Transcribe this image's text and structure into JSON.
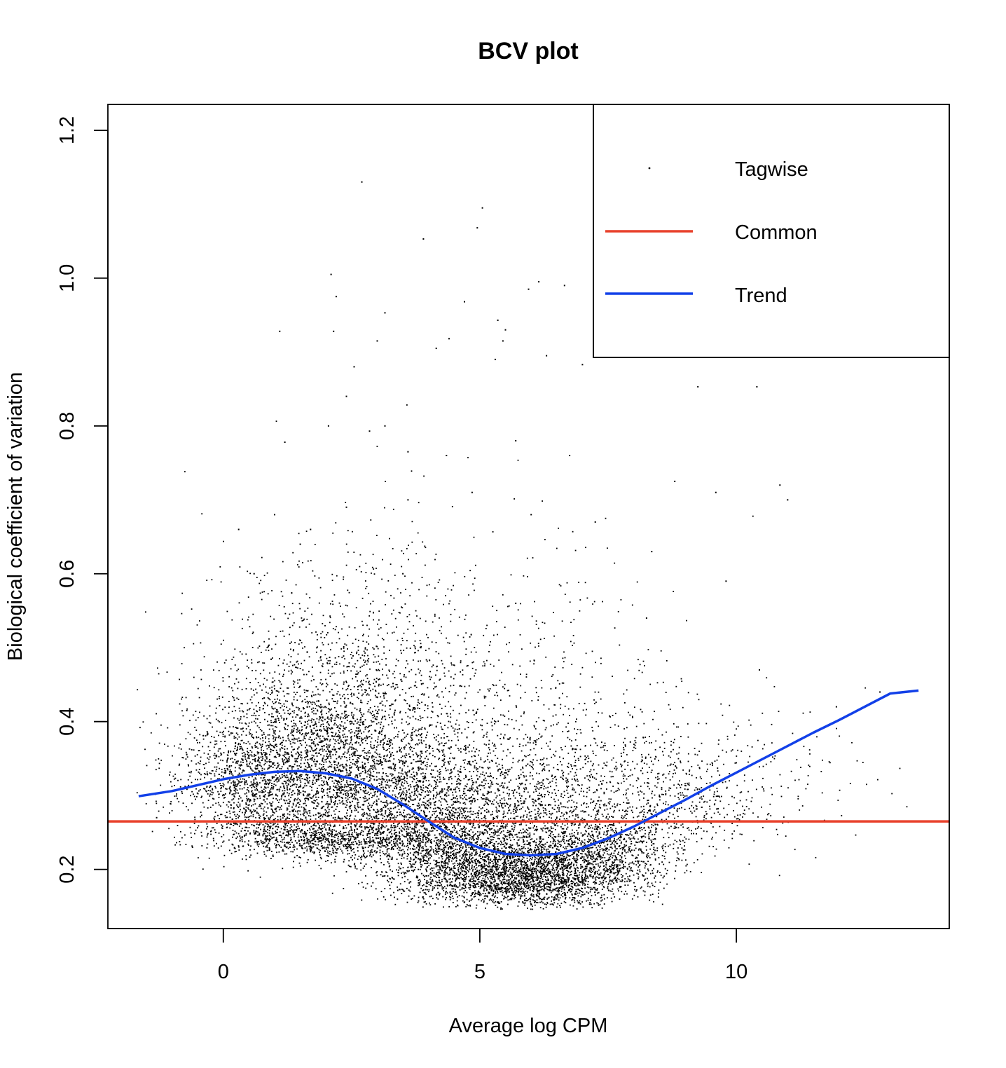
{
  "chart_data": {
    "type": "scatter",
    "title": "BCV plot",
    "xlabel": "Average log CPM",
    "ylabel": "Biological coefficient of variation",
    "xlim": [
      -2.25,
      14.15
    ],
    "ylim": [
      0.12,
      1.235
    ],
    "xticks": [
      0,
      5,
      10
    ],
    "xtick_labels": [
      "0",
      "5",
      "10"
    ],
    "yticks": [
      0.2,
      0.4,
      0.6,
      0.8,
      1.0,
      1.2
    ],
    "ytick_labels": [
      "0.2",
      "0.4",
      "0.6",
      "0.8",
      "1.0",
      "1.2"
    ],
    "grid": false,
    "legend": {
      "placement": "top-right",
      "entries": [
        {
          "label": "Tagwise",
          "kind": "point",
          "color": "#000000"
        },
        {
          "label": "Common",
          "kind": "line",
          "color": "#e8402b"
        },
        {
          "label": "Trend",
          "kind": "line",
          "color": "#1240e8"
        }
      ]
    },
    "series": [
      {
        "name": "Common",
        "kind": "hline",
        "color": "#e8402b",
        "y": 0.265
      },
      {
        "name": "Trend",
        "kind": "line",
        "color": "#1240e8",
        "x": [
          -1.65,
          -1,
          0,
          0.5,
          1,
          1.5,
          2,
          2.5,
          3,
          3.5,
          4,
          4.5,
          5,
          5.5,
          6,
          6.5,
          7,
          7.5,
          8,
          8.5,
          9,
          9.5,
          10,
          10.5,
          11,
          11.5,
          12,
          12.5,
          13,
          13.55
        ],
        "y": [
          0.299,
          0.306,
          0.322,
          0.328,
          0.332,
          0.333,
          0.33,
          0.323,
          0.309,
          0.288,
          0.265,
          0.243,
          0.229,
          0.221,
          0.219,
          0.221,
          0.229,
          0.242,
          0.258,
          0.276,
          0.294,
          0.313,
          0.331,
          0.349,
          0.367,
          0.385,
          0.402,
          0.42,
          0.438,
          0.442
        ]
      },
      {
        "name": "Tagwise",
        "kind": "points",
        "color": "#000000",
        "x": [
          2.7,
          5.05,
          4.95,
          3.9,
          2.1,
          2.2,
          4.7,
          5.95,
          6.15,
          6.65,
          3.15,
          5.35,
          5.5,
          1.1,
          2.15,
          4.4,
          5.45,
          3.0,
          4.15,
          2.55,
          5.3,
          6.3,
          7.5,
          9.25,
          10.4,
          7.0,
          2.4,
          2.85,
          3.15,
          1.2,
          2.05,
          3.6,
          4.35,
          5.7,
          6.75,
          8.8,
          9.6,
          10.85,
          11.0,
          1.0,
          1.7,
          2.4,
          3.6,
          4.85,
          6.0,
          7.25,
          8.35,
          9.8,
          0.3,
          0.6,
          1.5,
          3.5,
          5.7,
          8.25,
          10.45,
          12.8,
          11.95,
          -1.3,
          -0.6,
          -0.15,
          0.7,
          1.3
        ],
        "y": [
          1.13,
          1.095,
          1.068,
          1.053,
          1.005,
          0.975,
          0.968,
          0.985,
          0.995,
          0.99,
          0.953,
          0.943,
          0.93,
          0.928,
          0.928,
          0.918,
          0.915,
          0.915,
          0.905,
          0.88,
          0.89,
          0.895,
          0.93,
          0.853,
          0.853,
          0.883,
          0.84,
          0.793,
          0.8,
          0.778,
          0.8,
          0.765,
          0.76,
          0.78,
          0.76,
          0.725,
          0.71,
          0.72,
          0.7,
          0.68,
          0.66,
          0.69,
          0.7,
          0.71,
          0.68,
          0.67,
          0.63,
          0.59,
          0.66,
          0.6,
          0.64,
          0.6,
          0.56,
          0.54,
          0.47,
          0.44,
          0.42,
          0.27,
          0.23,
          0.25,
          0.26,
          0.23
        ]
      }
    ],
    "tagwise_density_clusters": [
      {
        "cx": 0.5,
        "cy": 0.3,
        "sx": 0.85,
        "sy": 0.07,
        "n": 1300
      },
      {
        "cx": 1.8,
        "cy": 0.32,
        "sx": 0.9,
        "sy": 0.085,
        "n": 1600
      },
      {
        "cx": 3.2,
        "cy": 0.3,
        "sx": 0.9,
        "sy": 0.08,
        "n": 1500
      },
      {
        "cx": 2.0,
        "cy": 0.235,
        "sx": 1.0,
        "sy": 0.02,
        "n": 900
      },
      {
        "cx": 4.3,
        "cy": 0.22,
        "sx": 0.8,
        "sy": 0.05,
        "n": 1400
      },
      {
        "cx": 5.8,
        "cy": 0.18,
        "sx": 1.0,
        "sy": 0.03,
        "n": 2400
      },
      {
        "cx": 5.5,
        "cy": 0.27,
        "sx": 1.0,
        "sy": 0.07,
        "n": 1000
      },
      {
        "cx": 7.2,
        "cy": 0.21,
        "sx": 0.85,
        "sy": 0.04,
        "n": 1100
      },
      {
        "cx": 7.5,
        "cy": 0.3,
        "sx": 1.0,
        "sy": 0.07,
        "n": 500
      },
      {
        "cx": 9.0,
        "cy": 0.27,
        "sx": 0.9,
        "sy": 0.05,
        "n": 330
      },
      {
        "cx": 10.7,
        "cy": 0.3,
        "sx": 1.0,
        "sy": 0.06,
        "n": 110
      },
      {
        "cx": 4.6,
        "cy": 0.45,
        "sx": 1.8,
        "sy": 0.1,
        "n": 450
      },
      {
        "cx": 2.2,
        "cy": 0.46,
        "sx": 1.3,
        "sy": 0.1,
        "n": 400
      }
    ]
  }
}
